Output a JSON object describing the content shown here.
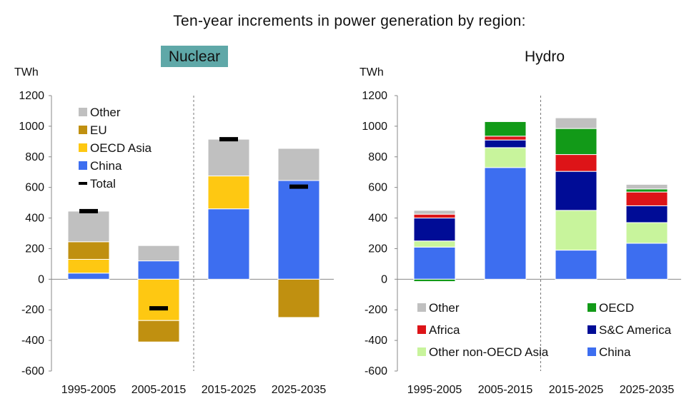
{
  "main_title": "Ten-year increments in power generation by region:",
  "colors": {
    "Other": "#c0c0c0",
    "EU": "#c09010",
    "OECD Asia": "#fec812",
    "China": "#3d6ef0",
    "OECD": "#129a18",
    "Africa": "#dd1418",
    "S&C America": "#000c96",
    "Other non-OECD Asia": "#c8f49c",
    "Total": "#000000",
    "title_highlight": "#5fa8a8"
  },
  "chart_data": [
    {
      "type": "bar",
      "stacked": true,
      "title": "Nuclear",
      "title_highlighted": true,
      "ylabel": "TWh",
      "ylim": [
        -600,
        1200
      ],
      "yticks": [
        -600,
        -400,
        -200,
        0,
        200,
        400,
        600,
        800,
        1000,
        1200
      ],
      "categories": [
        "1995-2005",
        "2005-2015",
        "2015-2025",
        "2025-2035"
      ],
      "legend_position": "top-left",
      "series": [
        {
          "name": "China",
          "values": [
            40,
            120,
            460,
            645
          ]
        },
        {
          "name": "OECD Asia",
          "values": [
            90,
            -270,
            215,
            0
          ]
        },
        {
          "name": "EU",
          "values": [
            115,
            -140,
            0,
            -250
          ]
        },
        {
          "name": "Other",
          "values": [
            200,
            100,
            240,
            210
          ]
        }
      ],
      "total": {
        "name": "Total",
        "values": [
          445,
          -190,
          915,
          605
        ]
      },
      "legend": [
        "Other",
        "EU",
        "OECD Asia",
        "China",
        "Total"
      ],
      "divider_after_category": 1
    },
    {
      "type": "bar",
      "stacked": true,
      "title": "Hydro",
      "title_highlighted": false,
      "ylabel": "TWh",
      "ylim": [
        -600,
        1200
      ],
      "yticks": [
        -600,
        -400,
        -200,
        0,
        200,
        400,
        600,
        800,
        1000,
        1200
      ],
      "categories": [
        "1995-2005",
        "2005-2015",
        "2015-2025",
        "2025-2035"
      ],
      "legend_position": "bottom",
      "series": [
        {
          "name": "China",
          "values": [
            210,
            730,
            190,
            235
          ]
        },
        {
          "name": "Other non-OECD Asia",
          "values": [
            40,
            130,
            260,
            135
          ]
        },
        {
          "name": "S&C America",
          "values": [
            150,
            50,
            255,
            110
          ]
        },
        {
          "name": "Africa",
          "values": [
            25,
            25,
            110,
            90
          ]
        },
        {
          "name": "OECD",
          "values": [
            -15,
            95,
            170,
            20
          ]
        },
        {
          "name": "Other",
          "values": [
            25,
            0,
            70,
            30
          ]
        }
      ],
      "legend": [
        "Other",
        "OECD",
        "Africa",
        "S&C America",
        "Other non-OECD Asia",
        "China"
      ],
      "divider_after_category": 1
    }
  ]
}
